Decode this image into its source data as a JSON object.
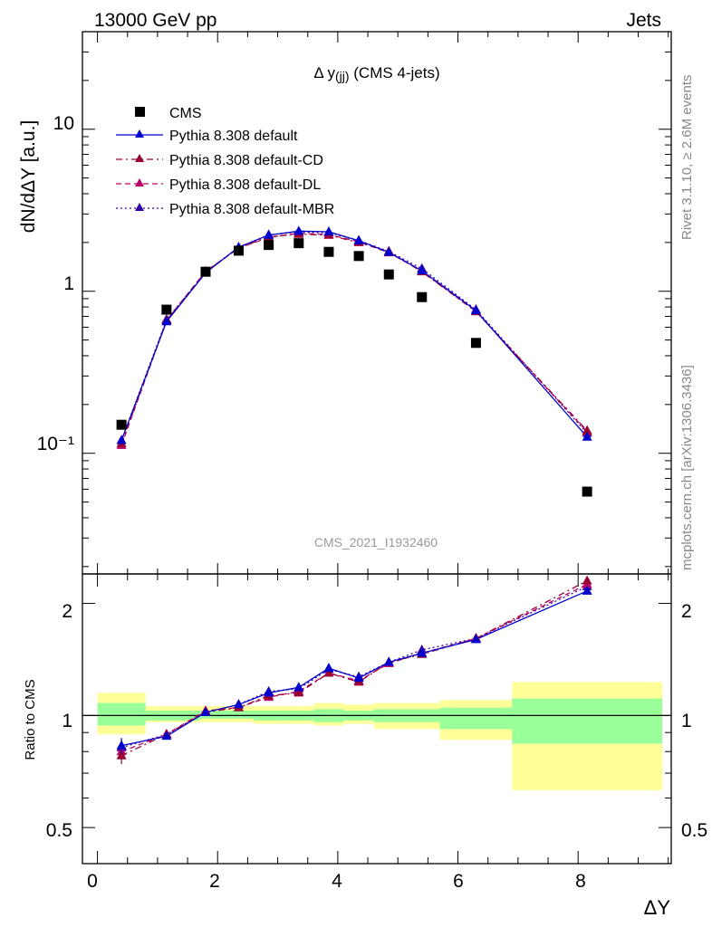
{
  "header": {
    "left": "13000 GeV pp",
    "right": "Jets"
  },
  "side_labels": {
    "rivet": "Rivet 3.1.10, ≥ 2.6M events",
    "mcplots": "mcplots.cern.ch [arXiv:1306.3436]"
  },
  "plot_title": {
    "prefix": "Δ y",
    "sub": "(jj)",
    "suffix": " (CMS 4-jets)"
  },
  "analysis_id": "CMS_2021_I1932460",
  "colors": {
    "cms": "#000000",
    "default": "#0000cc",
    "cd": "#990033",
    "dl": "#bb0066",
    "mbr": "#3300aa",
    "band_inner": "#99ff99",
    "band_outer": "#ffff99"
  },
  "chart_data": [
    {
      "type": "scatter",
      "panel": "main",
      "ylabel": "dN/dΔY [a.u.]",
      "yscale": "log",
      "ylim": [
        0.018,
        40
      ],
      "xlim": [
        -0.25,
        9.55
      ],
      "ytick_labels": [
        "10⁻¹",
        "1",
        "10"
      ],
      "legend_position": "top-left",
      "x": [
        0.4,
        1.15,
        1.8,
        2.35,
        2.85,
        3.35,
        3.85,
        4.35,
        4.85,
        5.4,
        6.3,
        8.15
      ],
      "series": [
        {
          "name": "CMS",
          "key": "cms",
          "marker": "square",
          "values": [
            0.15,
            0.77,
            1.32,
            1.78,
            1.93,
            1.98,
            1.75,
            1.65,
            1.27,
            0.92,
            0.48,
            0.058
          ]
        },
        {
          "name": "Pythia 8.308 default",
          "key": "default",
          "marker": "triangle",
          "dash": "",
          "values": [
            0.12,
            0.65,
            1.3,
            1.87,
            2.22,
            2.35,
            2.33,
            2.05,
            1.74,
            1.34,
            0.76,
            0.126
          ]
        },
        {
          "name": "Pythia 8.308 default-CD",
          "key": "cd",
          "marker": "triangle",
          "dash": "7,4,2,4",
          "values": [
            0.115,
            0.66,
            1.32,
            1.85,
            2.17,
            2.25,
            2.22,
            2.0,
            1.76,
            1.32,
            0.75,
            0.138
          ]
        },
        {
          "name": "Pythia 8.308 default-DL",
          "key": "dl",
          "marker": "triangle",
          "dash": "6,4",
          "values": [
            0.112,
            0.66,
            1.33,
            1.84,
            2.15,
            2.28,
            2.24,
            2.02,
            1.73,
            1.33,
            0.75,
            0.136
          ]
        },
        {
          "name": "Pythia 8.308 default-MBR",
          "key": "mbr",
          "marker": "triangle",
          "dash": "2,3",
          "values": [
            0.12,
            0.67,
            1.31,
            1.87,
            2.23,
            2.32,
            2.3,
            2.06,
            1.76,
            1.38,
            0.77,
            0.133
          ]
        }
      ]
    },
    {
      "type": "line",
      "panel": "ratio",
      "ylabel": "Ratio to CMS",
      "yscale": "log",
      "ylim": [
        0.4,
        2.4
      ],
      "xlim": [
        -0.25,
        9.55
      ],
      "xlabel": "ΔY",
      "ytick_labels": [
        "0.5",
        "1",
        "2"
      ],
      "xtick_labels": [
        "0",
        "2",
        "4",
        "6",
        "8"
      ],
      "x": [
        0.4,
        1.15,
        1.8,
        2.35,
        2.85,
        3.35,
        3.85,
        4.35,
        4.85,
        5.4,
        6.3,
        8.15
      ],
      "bands": [
        {
          "x0": 0.0,
          "x1": 0.8,
          "inner": [
            0.94,
            1.08
          ],
          "outer": [
            0.89,
            1.15
          ]
        },
        {
          "x0": 0.8,
          "x1": 1.7,
          "inner": [
            0.97,
            1.03
          ],
          "outer": [
            0.96,
            1.06
          ]
        },
        {
          "x0": 1.7,
          "x1": 2.2,
          "inner": [
            0.98,
            1.03
          ],
          "outer": [
            0.96,
            1.06
          ]
        },
        {
          "x0": 2.2,
          "x1": 2.6,
          "inner": [
            0.98,
            1.03
          ],
          "outer": [
            0.96,
            1.06
          ]
        },
        {
          "x0": 2.6,
          "x1": 3.1,
          "inner": [
            0.97,
            1.03
          ],
          "outer": [
            0.95,
            1.06
          ]
        },
        {
          "x0": 3.1,
          "x1": 3.6,
          "inner": [
            0.97,
            1.03
          ],
          "outer": [
            0.95,
            1.06
          ]
        },
        {
          "x0": 3.6,
          "x1": 4.1,
          "inner": [
            0.96,
            1.04
          ],
          "outer": [
            0.94,
            1.08
          ]
        },
        {
          "x0": 4.1,
          "x1": 4.6,
          "inner": [
            0.97,
            1.03
          ],
          "outer": [
            0.95,
            1.07
          ]
        },
        {
          "x0": 4.6,
          "x1": 5.1,
          "inner": [
            0.96,
            1.04
          ],
          "outer": [
            0.92,
            1.08
          ]
        },
        {
          "x0": 5.1,
          "x1": 5.7,
          "inner": [
            0.96,
            1.04
          ],
          "outer": [
            0.92,
            1.08
          ]
        },
        {
          "x0": 5.7,
          "x1": 6.9,
          "inner": [
            0.92,
            1.05
          ],
          "outer": [
            0.86,
            1.1
          ]
        },
        {
          "x0": 6.9,
          "x1": 9.4,
          "inner": [
            0.84,
            1.11
          ],
          "outer": [
            0.63,
            1.23
          ]
        }
      ],
      "series": [
        {
          "name": "Pythia 8.308 default",
          "key": "default",
          "values": [
            0.83,
            0.88,
            1.02,
            1.07,
            1.15,
            1.19,
            1.34,
            1.26,
            1.39,
            1.47,
            1.6,
            2.16
          ],
          "errors": [
            0.04,
            0,
            0,
            0,
            0,
            0,
            0,
            0,
            0,
            0,
            0,
            0
          ]
        },
        {
          "name": "Pythia 8.308 default-CD",
          "key": "cd",
          "values": [
            0.78,
            0.89,
            1.02,
            1.05,
            1.13,
            1.15,
            1.3,
            1.23,
            1.39,
            1.46,
            1.61,
            2.3
          ],
          "errors": [
            0.04,
            0,
            0,
            0,
            0,
            0,
            0,
            0,
            0,
            0,
            0,
            0
          ]
        },
        {
          "name": "Pythia 8.308 default-DL",
          "key": "dl",
          "values": [
            0.8,
            0.89,
            1.03,
            1.05,
            1.12,
            1.16,
            1.3,
            1.24,
            1.38,
            1.47,
            1.61,
            2.25
          ],
          "errors": [
            0.04,
            0,
            0,
            0,
            0,
            0,
            0,
            0,
            0,
            0,
            0,
            0
          ]
        },
        {
          "name": "Pythia 8.308 default-MBR",
          "key": "mbr",
          "values": [
            0.82,
            0.89,
            1.02,
            1.07,
            1.16,
            1.18,
            1.33,
            1.27,
            1.39,
            1.5,
            1.61,
            2.22
          ],
          "errors": [
            0.04,
            0,
            0,
            0,
            0,
            0,
            0,
            0,
            0,
            0,
            0,
            0
          ]
        }
      ]
    }
  ]
}
